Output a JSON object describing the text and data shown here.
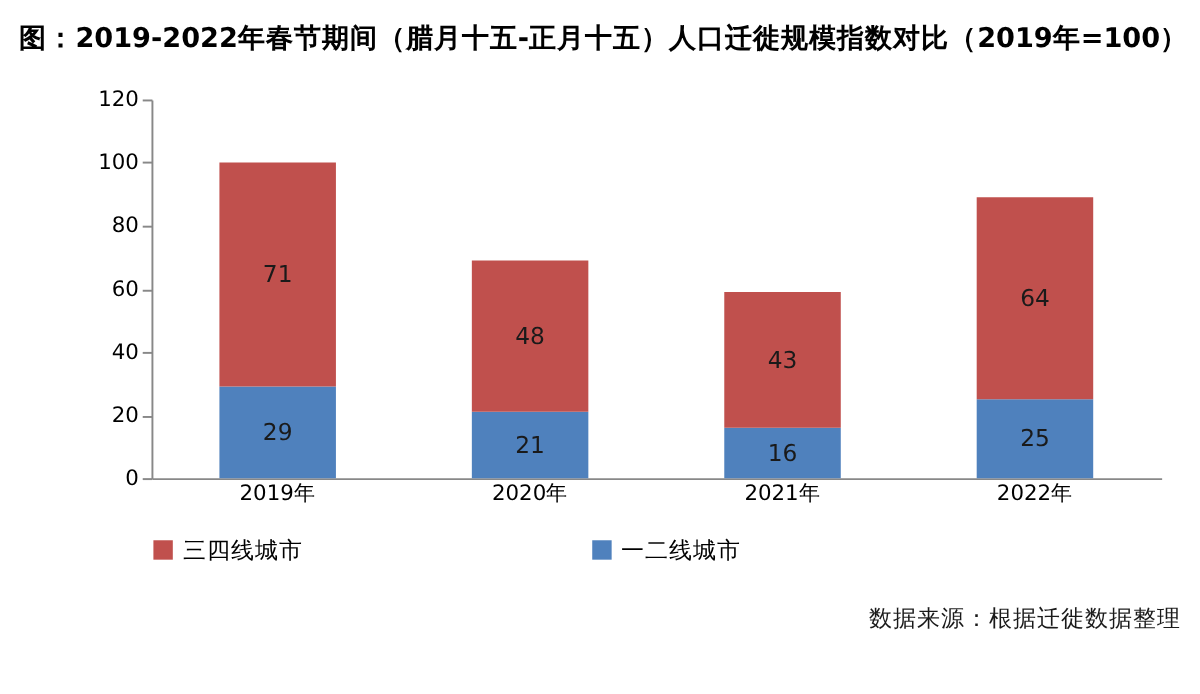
{
  "chart_data": {
    "type": "bar",
    "title": "图：2019-2022年春节期间（腊月十五-正月十五）人口迁徙规模指数对比（2019年=100）",
    "categories": [
      "2019年",
      "2020年",
      "2021年",
      "2022年"
    ],
    "stacked": true,
    "series": [
      {
        "name": "一二线城市",
        "color": "#4f81bd",
        "values": [
          29,
          21,
          16,
          25
        ]
      },
      {
        "name": "三四线城市",
        "color": "#c0504d",
        "values": [
          71,
          48,
          43,
          64
        ]
      }
    ],
    "ylim": [
      0,
      120
    ],
    "yticks": [
      0,
      20,
      40,
      60,
      80,
      100,
      120
    ],
    "data_labels": true,
    "grid": false,
    "legend": "bottom",
    "annotations": [
      "数据来源：根据迁徙数据整理"
    ]
  }
}
